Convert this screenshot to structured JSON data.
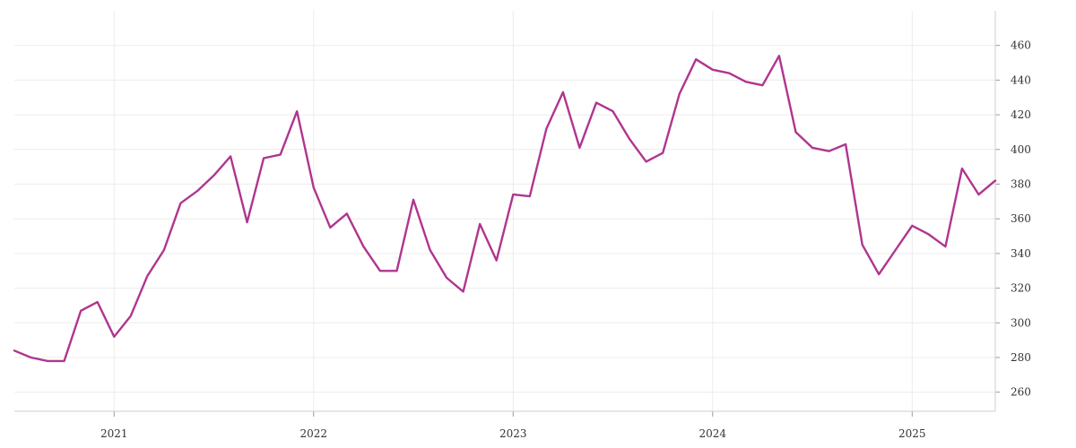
{
  "chart_data": {
    "type": "line",
    "title": "",
    "xlabel": "",
    "ylabel": "",
    "x_axis": {
      "type": "date",
      "range": [
        "2020-07-01",
        "2025-06-01"
      ],
      "ticks": [
        {
          "value": "2021-01-01",
          "label": "2021"
        },
        {
          "value": "2022-01-01",
          "label": "2022"
        },
        {
          "value": "2023-01-01",
          "label": "2023"
        },
        {
          "value": "2024-01-01",
          "label": "2024"
        },
        {
          "value": "2025-01-01",
          "label": "2025"
        }
      ]
    },
    "y_axis": {
      "position": "right",
      "range": [
        249,
        480
      ],
      "ticks": [
        260,
        280,
        300,
        320,
        340,
        360,
        380,
        400,
        420,
        440,
        460
      ]
    },
    "grid": true,
    "legend": "none",
    "series": [
      {
        "color": "#b0358f",
        "x": [
          "2020-07",
          "2020-08",
          "2020-09",
          "2020-10",
          "2020-11",
          "2020-12",
          "2021-01",
          "2021-02",
          "2021-03",
          "2021-04",
          "2021-05",
          "2021-06",
          "2021-07",
          "2021-08",
          "2021-09",
          "2021-10",
          "2021-11",
          "2021-12",
          "2022-01",
          "2022-02",
          "2022-03",
          "2022-04",
          "2022-05",
          "2022-06",
          "2022-07",
          "2022-08",
          "2022-09",
          "2022-10",
          "2022-11",
          "2022-12",
          "2023-01",
          "2023-02",
          "2023-03",
          "2023-04",
          "2023-05",
          "2023-06",
          "2023-07",
          "2023-08",
          "2023-09",
          "2023-10",
          "2023-11",
          "2023-12",
          "2024-01",
          "2024-02",
          "2024-03",
          "2024-04",
          "2024-05",
          "2024-06",
          "2024-07",
          "2024-08",
          "2024-09",
          "2024-10",
          "2024-11",
          "2024-12",
          "2025-01",
          "2025-02",
          "2025-03",
          "2025-04",
          "2025-05",
          "2025-06"
        ],
        "values": [
          284,
          280,
          278,
          278,
          307,
          312,
          292,
          304,
          327,
          342,
          369,
          376,
          385,
          396,
          358,
          395,
          397,
          422,
          378,
          355,
          363,
          344,
          330,
          330,
          371,
          342,
          326,
          318,
          357,
          336,
          374,
          373,
          412,
          433,
          401,
          427,
          422,
          406,
          393,
          398,
          432,
          452,
          446,
          444,
          439,
          437,
          454,
          410,
          401,
          399,
          403,
          345,
          328,
          342,
          356,
          351,
          344,
          389,
          374,
          382
        ]
      }
    ]
  }
}
